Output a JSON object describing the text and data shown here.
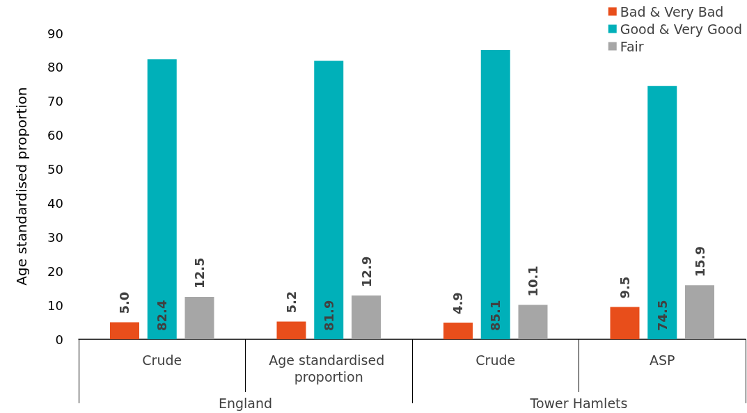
{
  "chart_data": {
    "type": "bar",
    "ylabel": "Age standardised proportion",
    "categories": [
      "Crude",
      "Age standardised proportion",
      "Crude",
      "ASP"
    ],
    "annotations": [
      "England",
      "Tower Hamlets"
    ],
    "series": [
      {
        "name": "Bad & Very Bad",
        "color": "#e84e1b",
        "values": [
          5.0,
          5.2,
          4.9,
          9.5
        ],
        "value_labels": [
          "5.0",
          "5.2",
          "4.9",
          "9.5"
        ]
      },
      {
        "name": "Good & Very Good",
        "color": "#00b0b9",
        "values": [
          82.4,
          81.9,
          85.1,
          74.5
        ],
        "value_labels": [
          "82.4",
          "81.9",
          "85.1",
          "74.5"
        ]
      },
      {
        "name": "Fair",
        "color": "#a6a6a6",
        "values": [
          12.5,
          12.9,
          10.1,
          15.9
        ],
        "value_labels": [
          "12.5",
          "12.9",
          "10.1",
          "15.9"
        ]
      }
    ],
    "ylim": [
      0,
      90
    ],
    "yticks": [
      0,
      10,
      20,
      30,
      40,
      50,
      60,
      70,
      80,
      90
    ],
    "grid": false,
    "legend": "top right"
  }
}
